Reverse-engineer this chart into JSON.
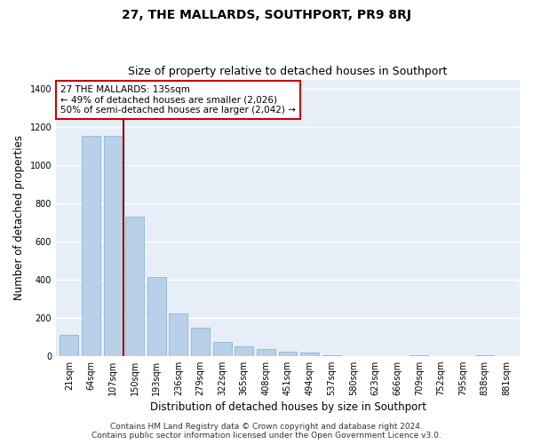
{
  "title": "27, THE MALLARDS, SOUTHPORT, PR9 8RJ",
  "subtitle": "Size of property relative to detached houses in Southport",
  "xlabel": "Distribution of detached houses by size in Southport",
  "ylabel": "Number of detached properties",
  "bar_labels": [
    "21sqm",
    "64sqm",
    "107sqm",
    "150sqm",
    "193sqm",
    "236sqm",
    "279sqm",
    "322sqm",
    "365sqm",
    "408sqm",
    "451sqm",
    "494sqm",
    "537sqm",
    "580sqm",
    "623sqm",
    "666sqm",
    "709sqm",
    "752sqm",
    "795sqm",
    "838sqm",
    "881sqm"
  ],
  "bar_values": [
    110,
    1155,
    1155,
    730,
    415,
    220,
    148,
    75,
    50,
    35,
    20,
    15,
    3,
    0,
    0,
    0,
    5,
    0,
    0,
    3,
    0
  ],
  "bar_color": "#b8d0e8",
  "bar_edge_color": "#7bafd4",
  "vline_x": 2.5,
  "vline_color": "#8b0000",
  "annotation_text": "27 THE MALLARDS: 135sqm\n← 49% of detached houses are smaller (2,026)\n50% of semi-detached houses are larger (2,042) →",
  "annotation_box_facecolor": "#ffffff",
  "annotation_box_edgecolor": "#cc0000",
  "ylim": [
    0,
    1450
  ],
  "yticks": [
    0,
    200,
    400,
    600,
    800,
    1000,
    1200,
    1400
  ],
  "footer_line1": "Contains HM Land Registry data © Crown copyright and database right 2024.",
  "footer_line2": "Contains public sector information licensed under the Open Government Licence v3.0.",
  "bg_color": "#ffffff",
  "plot_bg_color": "#e8eef7",
  "grid_color": "#ffffff",
  "title_fontsize": 10,
  "subtitle_fontsize": 9,
  "axis_label_fontsize": 8.5,
  "tick_fontsize": 7,
  "annotation_fontsize": 7.5,
  "footer_fontsize": 6.5
}
